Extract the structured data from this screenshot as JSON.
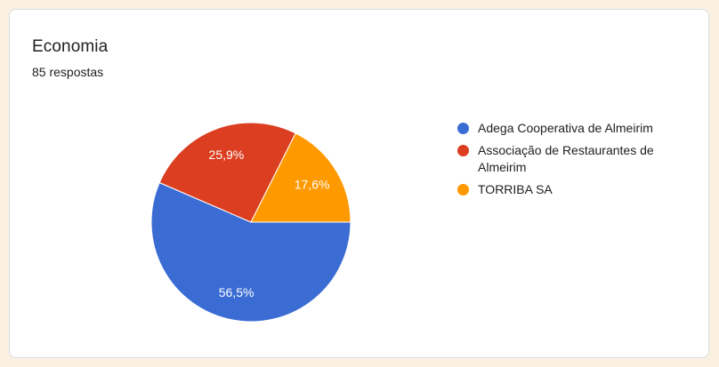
{
  "card": {
    "title": "Economia",
    "subtitle": "85 respostas"
  },
  "chart_data": {
    "type": "pie",
    "title": "Economia",
    "subtitle": "85 respostas",
    "categories": [
      "Adega Cooperativa de Almeirim",
      "Associação de Restaurantes de Almeirim",
      "TORRIBA SA"
    ],
    "values": [
      56.5,
      25.9,
      17.6
    ],
    "value_labels": [
      "56,5%",
      "25,9%",
      "17,6%"
    ],
    "colors": [
      "#3A6CD4",
      "#DB3E20",
      "#FF9900"
    ],
    "slice_border_color": "#FFFFFF",
    "legend_position": "right",
    "start_angle_deg": 0,
    "direction": "clockwise"
  },
  "theme": {
    "page_background": "#FAF1E3",
    "card_background": "#FFFFFF",
    "card_border": "#DADCE0",
    "text_color": "#202124"
  }
}
